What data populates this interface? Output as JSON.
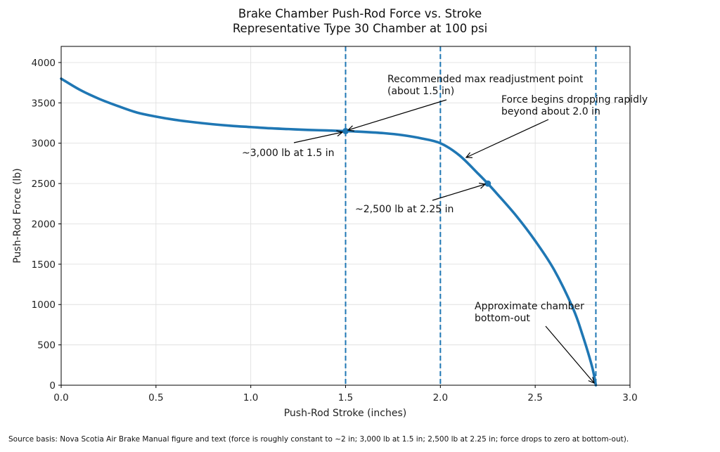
{
  "title_line1": "Brake Chamber Push-Rod Force vs. Stroke",
  "title_line2": "Representative Type 30 Chamber at 100 psi",
  "source_note": "Source basis: Nova Scotia Air Brake Manual figure and text (force is roughly constant to ~2 in; 3,000 lb at 1.5 in; 2,500 lb at 2.25 in; force drops to zero at bottom-out).",
  "colors": {
    "series": "#1f77b4",
    "grid": "#e0e0e0",
    "axis": "#000000",
    "annotation": "#000000"
  },
  "chart_data": {
    "type": "line",
    "title": "Brake Chamber Push-Rod Force vs. Stroke\nRepresentative Type 30 Chamber at 100 psi",
    "xlabel": "Push-Rod Stroke (inches)",
    "ylabel": "Push-Rod Force (lb)",
    "xlim": [
      0.0,
      3.0
    ],
    "ylim": [
      0,
      4200
    ],
    "xticks": [
      0.0,
      0.5,
      1.0,
      1.5,
      2.0,
      2.5,
      3.0
    ],
    "xtick_labels": [
      "0.0",
      "0.5",
      "1.0",
      "1.5",
      "2.0",
      "2.5",
      "3.0"
    ],
    "yticks": [
      0,
      500,
      1000,
      1500,
      2000,
      2500,
      3000,
      3500,
      4000
    ],
    "ytick_labels": [
      "0",
      "500",
      "1000",
      "1500",
      "2000",
      "2500",
      "3000",
      "3500",
      "4000"
    ],
    "grid": true,
    "series": [
      {
        "name": "Push-rod force",
        "x": [
          0.0,
          0.1,
          0.2,
          0.3,
          0.4,
          0.5,
          0.6,
          0.7,
          0.8,
          0.9,
          1.0,
          1.1,
          1.2,
          1.3,
          1.4,
          1.5,
          1.6,
          1.7,
          1.8,
          1.9,
          2.0,
          2.1,
          2.2,
          2.25,
          2.3,
          2.4,
          2.5,
          2.6,
          2.7,
          2.75,
          2.8,
          2.82
        ],
        "values": [
          3800,
          3660,
          3550,
          3460,
          3380,
          3330,
          3290,
          3260,
          3235,
          3215,
          3200,
          3185,
          3175,
          3165,
          3158,
          3150,
          3140,
          3125,
          3100,
          3060,
          3000,
          2850,
          2620,
          2500,
          2370,
          2100,
          1790,
          1430,
          950,
          620,
          230,
          0
        ]
      }
    ],
    "markers": [
      {
        "x": 1.5,
        "y": 3150
      },
      {
        "x": 2.25,
        "y": 2500
      }
    ],
    "vlines": [
      {
        "x": 1.5,
        "style": "dashed"
      },
      {
        "x": 2.0,
        "style": "dashed"
      },
      {
        "x": 2.82,
        "style": "dashed"
      }
    ],
    "annotations": [
      {
        "text": "~3,000 lb at 1.5 in",
        "xy": [
          1.5,
          3150
        ]
      },
      {
        "text": "Recommended max readjustment point\n(about 1.5 in)",
        "xy": [
          1.5,
          3150
        ]
      },
      {
        "text": "Force begins dropping rapidly\nbeyond about 2.0 in",
        "xy": [
          2.13,
          2800
        ]
      },
      {
        "text": "~2,500 lb at 2.25 in",
        "xy": [
          2.25,
          2500
        ]
      },
      {
        "text": "Approximate chamber\nbottom-out",
        "xy": [
          2.82,
          0
        ]
      }
    ]
  },
  "annotations_text": {
    "a1": "~3,000 lb at 1.5 in",
    "a2_l1": "Recommended max readjustment point",
    "a2_l2": "(about 1.5 in)",
    "a3_l1": "Force begins dropping rapidly",
    "a3_l2": "beyond about 2.0 in",
    "a4": "~2,500 lb at 2.25 in",
    "a5_l1": "Approximate chamber",
    "a5_l2": "bottom-out"
  }
}
